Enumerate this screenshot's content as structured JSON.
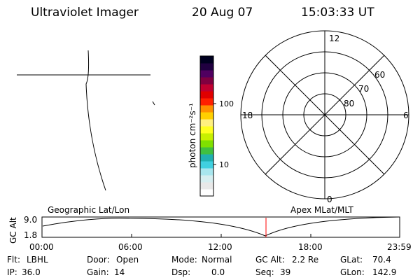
{
  "header": {
    "instrument": "Ultraviolet Imager",
    "date": "20 Aug 07",
    "time": "15:03:33 UT"
  },
  "colorbar": {
    "unit": "photon cm⁻²s⁻¹",
    "tick_100": "100",
    "tick_10": "10",
    "colors": [
      "#ffffff",
      "#e8e8e8",
      "#d6eef0",
      "#a8e6ee",
      "#40d0e0",
      "#20b0b0",
      "#40c040",
      "#80e000",
      "#c8f000",
      "#ffff20",
      "#fff080",
      "#ffd000",
      "#ff9000",
      "#ff2000",
      "#e00000",
      "#c00030",
      "#800040",
      "#500060",
      "#200040",
      "#000020"
    ]
  },
  "polar": {
    "mlt": {
      "top": "12",
      "left": "18",
      "right": "6",
      "bottom": "0"
    },
    "mlat": {
      "r60": "60",
      "r70": "70",
      "r80": "80"
    }
  },
  "timeline": {
    "left_label": "Geographic Lat/Lon",
    "right_label": "Apex MLat/MLT",
    "axis_title": "GC Alt",
    "y_ticks": [
      "9.0",
      "1.8"
    ],
    "x_ticks": [
      "00:00",
      "06:00",
      "12:00",
      "18:00",
      "23:59"
    ],
    "current_marker_color": "#ff0000"
  },
  "info": {
    "row1": [
      {
        "label": "Flt:",
        "value": "LBHL"
      },
      {
        "label": "Door:",
        "value": "Open"
      },
      {
        "label": "Mode:",
        "value": "Normal"
      },
      {
        "label": "GC Alt:",
        "value": "2.2 Re"
      },
      {
        "label": "GLat:",
        "value": "70.4"
      }
    ],
    "row2": [
      {
        "label": "IP:",
        "value": "36.0"
      },
      {
        "label": "Gain:",
        "value": "14"
      },
      {
        "label": "Dsp:",
        "value": "0.0"
      },
      {
        "label": "Seq:",
        "value": "39"
      },
      {
        "label": "GLon:",
        "value": "142.9"
      }
    ]
  }
}
